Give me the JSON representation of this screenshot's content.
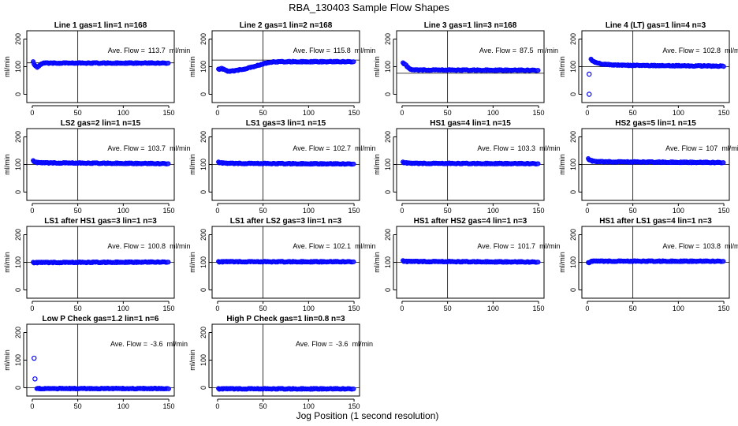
{
  "figure": {
    "title": "RBA_130403  Sample Flow Shapes",
    "xlabel": "Jog Position (1 second resolution)",
    "panel_ylabel": "ml/min",
    "annotation_prefix": "Ave. Flow =",
    "annotation_unit": "ml/min",
    "point_color": "#0000ff",
    "point_fill": "#2b2bff"
  },
  "chart_data": [
    {
      "type": "scatter",
      "title": "Line 1 gas=1 lin=1 n=168",
      "ave_flow": "113.7",
      "hline": 113.7,
      "vline": 50,
      "xlim": [
        0,
        150
      ],
      "ylim": [
        -30,
        230
      ],
      "xticks": [
        0,
        50,
        100,
        150
      ],
      "yticks": [
        0,
        100,
        200
      ],
      "pattern": [
        [
          1,
          117
        ],
        [
          3,
          104
        ],
        [
          5,
          98
        ],
        [
          7,
          100
        ],
        [
          9,
          107
        ],
        [
          11,
          111
        ],
        [
          13,
          113
        ],
        [
          15,
          113
        ],
        [
          150,
          113
        ]
      ]
    },
    {
      "type": "scatter",
      "title": "Line 2 gas=1 lin=2 n=168",
      "ave_flow": "115.8",
      "hline": 124,
      "vline": 50,
      "xlim": [
        0,
        150
      ],
      "ylim": [
        -30,
        230
      ],
      "xticks": [
        0,
        50,
        100,
        150
      ],
      "yticks": [
        0,
        100,
        200
      ],
      "pattern": [
        [
          1,
          90
        ],
        [
          4,
          94
        ],
        [
          8,
          88
        ],
        [
          12,
          82
        ],
        [
          16,
          84
        ],
        [
          22,
          87
        ],
        [
          30,
          92
        ],
        [
          40,
          100
        ],
        [
          50,
          110
        ],
        [
          60,
          117
        ],
        [
          75,
          118
        ],
        [
          150,
          118
        ]
      ]
    },
    {
      "type": "scatter",
      "title": "Line 3 gas=1 lin=3 n=168",
      "ave_flow": "87.5",
      "hline": 76,
      "vline": 50,
      "xlim": [
        0,
        150
      ],
      "ylim": [
        -30,
        230
      ],
      "xticks": [
        0,
        50,
        100,
        150
      ],
      "yticks": [
        0,
        100,
        200
      ],
      "pattern": [
        [
          1,
          113
        ],
        [
          3,
          110
        ],
        [
          5,
          103
        ],
        [
          7,
          95
        ],
        [
          9,
          90
        ],
        [
          12,
          88
        ],
        [
          150,
          87
        ]
      ]
    },
    {
      "type": "scatter",
      "title": "Line 4 (LT) gas=1 lin=4 n=3",
      "ave_flow": "102.8",
      "hline": 100,
      "vline": 50,
      "xlim": [
        0,
        150
      ],
      "ylim": [
        -30,
        230
      ],
      "xticks": [
        0,
        50,
        100,
        150
      ],
      "yticks": [
        0,
        100,
        200
      ],
      "outliers": [
        [
          2,
          0
        ],
        [
          2,
          73
        ]
      ],
      "pattern": [
        [
          4,
          128
        ],
        [
          6,
          120
        ],
        [
          9,
          115
        ],
        [
          15,
          110
        ],
        [
          25,
          107
        ],
        [
          40,
          105
        ],
        [
          150,
          102
        ]
      ]
    },
    {
      "type": "scatter",
      "title": "LS2 gas=2 lin=1 n=15",
      "ave_flow": "103.7",
      "hline": 100,
      "vline": 50,
      "xlim": [
        0,
        150
      ],
      "ylim": [
        -30,
        230
      ],
      "xticks": [
        0,
        50,
        100,
        150
      ],
      "yticks": [
        0,
        100,
        200
      ],
      "pattern": [
        [
          1,
          113
        ],
        [
          4,
          108
        ],
        [
          8,
          106
        ],
        [
          150,
          103
        ]
      ]
    },
    {
      "type": "scatter",
      "title": "LS1 gas=3 lin=1 n=15",
      "ave_flow": "102.7",
      "hline": 100,
      "vline": 50,
      "xlim": [
        0,
        150
      ],
      "ylim": [
        -30,
        230
      ],
      "xticks": [
        0,
        50,
        100,
        150
      ],
      "yticks": [
        0,
        100,
        200
      ],
      "pattern": [
        [
          1,
          108
        ],
        [
          4,
          106
        ],
        [
          10,
          104
        ],
        [
          150,
          102
        ]
      ]
    },
    {
      "type": "scatter",
      "title": "HS1 gas=4 lin=1 n=15",
      "ave_flow": "103.3",
      "hline": 100,
      "vline": 50,
      "xlim": [
        0,
        150
      ],
      "ylim": [
        -30,
        230
      ],
      "xticks": [
        0,
        50,
        100,
        150
      ],
      "yticks": [
        0,
        100,
        200
      ],
      "pattern": [
        [
          1,
          108
        ],
        [
          4,
          106
        ],
        [
          10,
          104
        ],
        [
          150,
          103
        ]
      ]
    },
    {
      "type": "scatter",
      "title": "HS2 gas=5 lin=1 n=15",
      "ave_flow": "107",
      "hline": 100,
      "vline": 50,
      "xlim": [
        0,
        150
      ],
      "ylim": [
        -30,
        230
      ],
      "xticks": [
        0,
        50,
        100,
        150
      ],
      "yticks": [
        0,
        100,
        200
      ],
      "pattern": [
        [
          1,
          120
        ],
        [
          3,
          116
        ],
        [
          6,
          112
        ],
        [
          10,
          110
        ],
        [
          150,
          107
        ]
      ]
    },
    {
      "type": "scatter",
      "title": "LS1 after HS1 gas=3 lin=1 n=3",
      "ave_flow": "100.8",
      "hline": 100,
      "vline": 50,
      "xlim": [
        0,
        150
      ],
      "ylim": [
        -30,
        230
      ],
      "xticks": [
        0,
        50,
        100,
        150
      ],
      "yticks": [
        0,
        100,
        200
      ],
      "pattern": [
        [
          1,
          99
        ],
        [
          150,
          101
        ]
      ]
    },
    {
      "type": "scatter",
      "title": "LS1 after LS2 gas=3 lin=1 n=3",
      "ave_flow": "102.1",
      "hline": 100,
      "vline": 50,
      "xlim": [
        0,
        150
      ],
      "ylim": [
        -30,
        230
      ],
      "xticks": [
        0,
        50,
        100,
        150
      ],
      "yticks": [
        0,
        100,
        200
      ],
      "pattern": [
        [
          1,
          102
        ],
        [
          150,
          102
        ]
      ]
    },
    {
      "type": "scatter",
      "title": "HS1 after HS2 gas=4 lin=1 n=3",
      "ave_flow": "101.7",
      "hline": 100,
      "vline": 50,
      "xlim": [
        0,
        150
      ],
      "ylim": [
        -30,
        230
      ],
      "xticks": [
        0,
        50,
        100,
        150
      ],
      "yticks": [
        0,
        100,
        200
      ],
      "pattern": [
        [
          1,
          105
        ],
        [
          5,
          103
        ],
        [
          150,
          101
        ]
      ]
    },
    {
      "type": "scatter",
      "title": "HS1 after LS1 gas=4 lin=1 n=3",
      "ave_flow": "103.8",
      "hline": 100,
      "vline": 50,
      "xlim": [
        0,
        150
      ],
      "ylim": [
        -30,
        230
      ],
      "xticks": [
        0,
        50,
        100,
        150
      ],
      "yticks": [
        0,
        100,
        200
      ],
      "pattern": [
        [
          1,
          98
        ],
        [
          5,
          104
        ],
        [
          150,
          104
        ]
      ]
    },
    {
      "type": "scatter",
      "title": "Low P Check gas=1.2 lin=1 n=6",
      "ave_flow": "-3.6",
      "hline": 0,
      "vline": 50,
      "xlim": [
        0,
        150
      ],
      "ylim": [
        -30,
        230
      ],
      "xticks": [
        0,
        50,
        100,
        150
      ],
      "yticks": [
        0,
        100,
        200
      ],
      "outliers": [
        [
          2,
          107
        ],
        [
          3,
          32
        ]
      ],
      "pattern": [
        [
          5,
          -3
        ],
        [
          150,
          -3
        ]
      ]
    },
    {
      "type": "scatter",
      "title": "High P Check gas=1 lin=0.8 n=3",
      "ave_flow": "-3.6",
      "hline": 0,
      "vline": 50,
      "xlim": [
        0,
        150
      ],
      "ylim": [
        -30,
        230
      ],
      "xticks": [
        0,
        50,
        100,
        150
      ],
      "yticks": [
        0,
        100,
        200
      ],
      "pattern": [
        [
          1,
          -4
        ],
        [
          150,
          -4
        ]
      ]
    }
  ]
}
